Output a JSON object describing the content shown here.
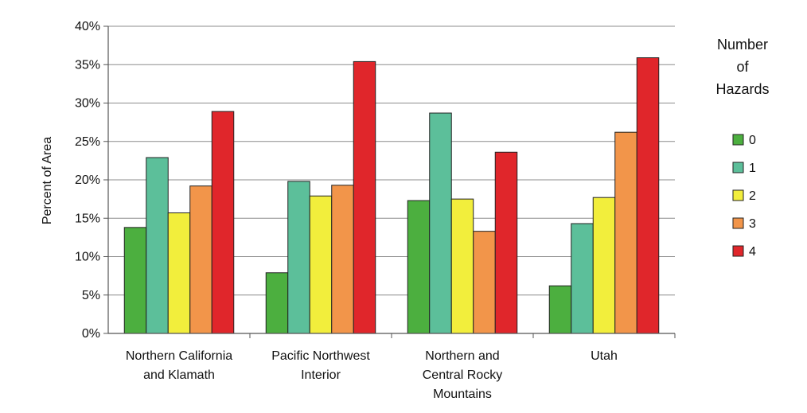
{
  "chart_data": {
    "type": "bar",
    "ylabel": "Percent of Area",
    "xlabel": "",
    "ylim": [
      0,
      40
    ],
    "yticks": [
      "0%",
      "5%",
      "10%",
      "15%",
      "20%",
      "25%",
      "30%",
      "35%",
      "40%"
    ],
    "categories": [
      [
        "Northern California",
        "and Klamath"
      ],
      [
        "Pacific Northwest",
        "Interior"
      ],
      [
        "Northern and",
        "Central Rocky",
        "Mountains"
      ],
      [
        "Utah"
      ]
    ],
    "series": [
      {
        "name": "0",
        "color": "#4caf3f",
        "values": [
          13.8,
          7.9,
          17.3,
          6.2
        ]
      },
      {
        "name": "1",
        "color": "#5cbf9a",
        "values": [
          22.9,
          19.8,
          28.7,
          14.3
        ]
      },
      {
        "name": "2",
        "color": "#f2ee3c",
        "values": [
          15.7,
          17.9,
          17.5,
          17.7
        ]
      },
      {
        "name": "3",
        "color": "#f2954a",
        "values": [
          19.2,
          19.3,
          13.3,
          26.2
        ]
      },
      {
        "name": "4",
        "color": "#e0262b",
        "values": [
          28.9,
          35.4,
          23.6,
          35.9
        ]
      }
    ],
    "legend": {
      "title": [
        "Number",
        "of",
        "Hazards"
      ],
      "position": "right"
    },
    "grid": true
  }
}
